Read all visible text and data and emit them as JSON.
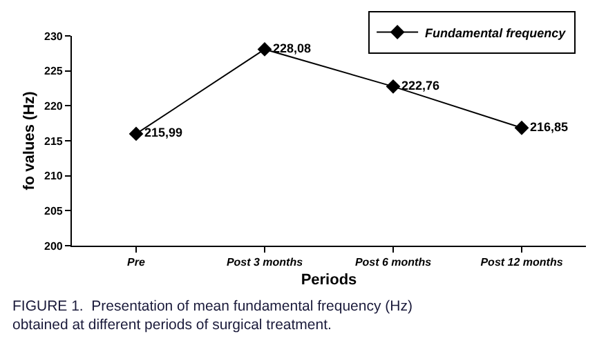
{
  "chart_data": {
    "type": "line",
    "xlabel": "Periods",
    "ylabel": "fo values (Hz)",
    "categories": [
      "Pre",
      "Post 3 months",
      "Post 6 months",
      "Post 12 months"
    ],
    "series": [
      {
        "name": "Fundamental frequency",
        "color": "#000000",
        "values": [
          215.99,
          228.08,
          222.76,
          216.85
        ],
        "value_labels": [
          "215,99",
          "228,08",
          "222,76",
          "216,85"
        ]
      }
    ],
    "ylim": [
      200,
      230
    ],
    "yticks": [
      200,
      205,
      210,
      215,
      220,
      225,
      230
    ],
    "marker": "diamond",
    "line_style": "solid",
    "legend": "top right",
    "annotations": [
      "FIGURE 1.  Presentation of mean fundamental frequency (Hz) obtained at different periods of surgical treatment."
    ]
  }
}
